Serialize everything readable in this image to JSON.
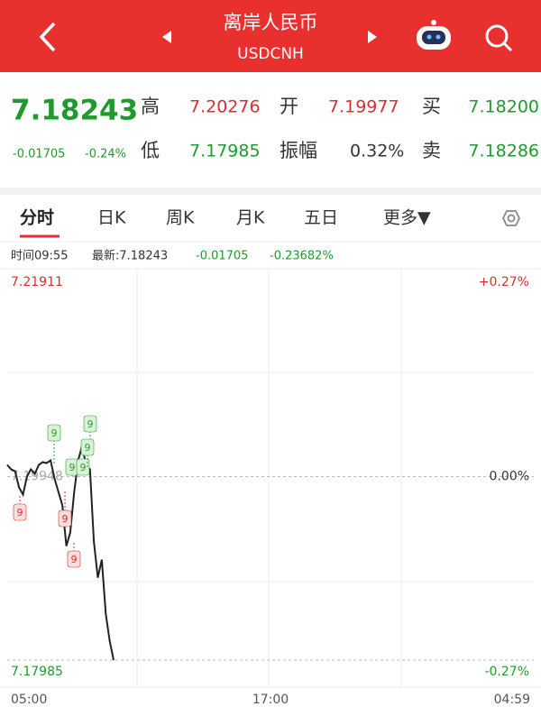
{
  "header": {
    "title": "离岸人民币",
    "subtitle": "USDCNH"
  },
  "quote": {
    "price": "7.18243",
    "change": "-0.01705",
    "change_pct": "-0.24%",
    "fields": [
      {
        "label": "高",
        "value": "7.20276",
        "color": "#d43030"
      },
      {
        "label": "开",
        "value": "7.19977",
        "color": "#d43030"
      },
      {
        "label": "买",
        "value": "7.18200",
        "color": "#1f9a2c"
      },
      {
        "label": "低",
        "value": "7.17985",
        "color": "#1f9a2c"
      },
      {
        "label": "振幅",
        "value": "0.32%",
        "color": "#333333"
      },
      {
        "label": "卖",
        "value": "7.18286",
        "color": "#1f9a2c"
      }
    ]
  },
  "tabs": [
    "分时",
    "日K",
    "周K",
    "月K",
    "五日",
    "更多▼"
  ],
  "info": {
    "time": "时间09:55",
    "latest": "最新:7.18243",
    "change": "-0.01705",
    "change_pct": "-0.23682%"
  },
  "chart": {
    "type": "line",
    "color": "#222222",
    "ylim": [
      7.17985,
      7.21911
    ],
    "yticks": [
      {
        "value": 7.21911,
        "label": "7.21911"
      },
      {
        "value": 7.19948,
        "label": "7.19948"
      },
      {
        "value": 7.17985,
        "label": "7.17985"
      }
    ],
    "y2ticks": [
      "+0.27%",
      "0.00%",
      "-0.27%"
    ],
    "xticks": [
      "05:00",
      "17:00",
      "04:59"
    ],
    "values": [
      7.20073,
      7.20025,
      7.20006,
      7.19832,
      7.19755,
      7.19948,
      7.20025,
      7.19977,
      7.20073,
      7.20102,
      7.20093,
      7.20122,
      7.19929,
      7.19784,
      7.19639,
      7.19205,
      7.1935,
      7.19784,
      7.20122,
      7.20276,
      7.20073,
      7.20025,
      7.19253,
      7.18867,
      7.1906,
      7.18481,
      7.18192,
      7.17985
    ],
    "markers": [
      {
        "label": "9",
        "color": "#2e9b3a"
      },
      {
        "label": "9",
        "color": "#2e9b3a"
      },
      {
        "label": "9",
        "color": "#2e9b3a"
      },
      {
        "label": "9",
        "color": "#2e9b3a"
      },
      {
        "label": "9",
        "color": "#2e9b3a"
      },
      {
        "label": "9",
        "color": "#d43030"
      },
      {
        "label": "9",
        "color": "#d43030"
      },
      {
        "label": "9",
        "color": "#d43030"
      }
    ]
  }
}
